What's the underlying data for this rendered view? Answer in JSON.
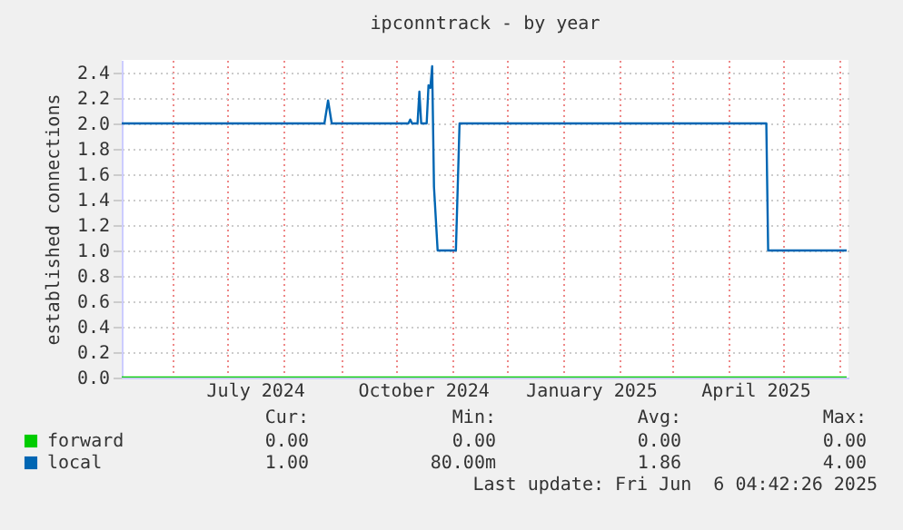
{
  "chart_data": {
    "type": "line",
    "title": "ipconntrack - by year",
    "ylabel": "established connections",
    "xlim": [
      "2024-05-04",
      "2025-06-06"
    ],
    "xticks": [
      {
        "value": "2024-06-01",
        "label": null
      },
      {
        "value": "2024-07-01",
        "label": null
      },
      {
        "value": "2024-07-16",
        "label": "July 2024"
      },
      {
        "value": "2024-08-01",
        "label": null
      },
      {
        "value": "2024-09-01",
        "label": null
      },
      {
        "value": "2024-10-01",
        "label": null
      },
      {
        "value": "2024-10-16",
        "label": "October 2024"
      },
      {
        "value": "2024-11-01",
        "label": null
      },
      {
        "value": "2024-12-01",
        "label": null
      },
      {
        "value": "2025-01-01",
        "label": null
      },
      {
        "value": "2025-01-16",
        "label": "January 2025"
      },
      {
        "value": "2025-02-01",
        "label": null
      },
      {
        "value": "2025-03-01",
        "label": null
      },
      {
        "value": "2025-04-01",
        "label": null
      },
      {
        "value": "2025-04-16",
        "label": "April 2025"
      },
      {
        "value": "2025-05-01",
        "label": null
      },
      {
        "value": "2025-06-01",
        "label": null
      }
    ],
    "ylim": [
      0,
      2.5
    ],
    "yticks": [
      {
        "value": 0,
        "label": "0.0"
      },
      {
        "value": 0.2,
        "label": "0.2"
      },
      {
        "value": 0.4,
        "label": "0.4"
      },
      {
        "value": 0.6,
        "label": "0.6"
      },
      {
        "value": 0.8,
        "label": "0.8"
      },
      {
        "value": 1,
        "label": "1.0"
      },
      {
        "value": 1.2,
        "label": "1.2"
      },
      {
        "value": 1.4,
        "label": "1.4"
      },
      {
        "value": 1.6,
        "label": "1.6"
      },
      {
        "value": 1.8,
        "label": "1.8"
      },
      {
        "value": 2,
        "label": "2.0"
      },
      {
        "value": 2.2,
        "label": "2.2"
      },
      {
        "value": 2.4,
        "label": "2.4"
      }
    ],
    "grid": true,
    "legend": "bottom left",
    "marker": "none",
    "line_style": "solid",
    "series": [
      {
        "name": "forward",
        "color": "#00cc00",
        "x": [
          "2024-05-04",
          "2025-06-05"
        ],
        "values": [
          0,
          0
        ]
      },
      {
        "name": "local",
        "color": "#0066b3",
        "x": [
          "2024-05-04",
          "2024-08-23",
          "2024-08-25",
          "2024-08-27",
          "2024-10-08",
          "2024-10-09",
          "2024-10-10",
          "2024-10-13",
          "2024-10-14",
          "2024-10-15",
          "2024-10-18",
          "2024-10-19",
          "2024-10-20",
          "2024-10-21",
          "2024-10-22",
          "2024-10-24",
          "2024-11-03",
          "2024-11-05",
          "2025-04-22",
          "2025-04-23",
          "2025-06-05"
        ],
        "values": [
          2.0,
          2.0,
          2.18,
          2.0,
          2.0,
          2.03,
          2.0,
          2.0,
          2.25,
          2.0,
          2.0,
          2.3,
          2.28,
          2.45,
          1.5,
          1.0,
          1.0,
          2.0,
          2.0,
          1.0,
          1.0
        ]
      }
    ],
    "annotations": [
      "Cur:",
      "Min:",
      "Avg:",
      "Max:",
      "0.00",
      "0.00",
      "0.00",
      "0.00",
      "1.00",
      "80.00m",
      "1.86",
      "4.00",
      "Last update: Fri Jun  6 04:42:26 2025"
    ]
  }
}
